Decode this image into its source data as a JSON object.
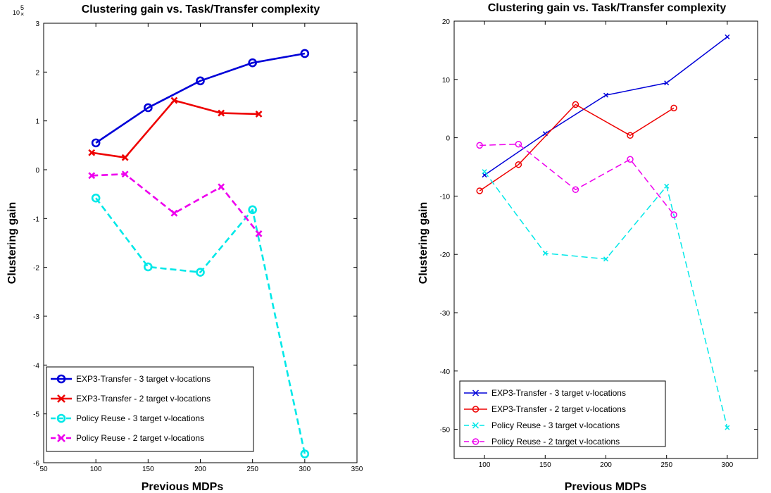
{
  "chart_data": [
    {
      "type": "line",
      "title": "Clustering gain vs. Task/Transfer complexity",
      "xlabel": "Previous MDPs",
      "ylabel": "Clustering gain",
      "exponent_label": "10",
      "exponent_power": "5",
      "xlim": [
        50,
        350
      ],
      "ylim": [
        -6,
        3
      ],
      "xticks": [
        "50",
        "100",
        "150",
        "200",
        "250",
        "300",
        "350"
      ],
      "yticks": [
        "-6",
        "-5",
        "-4",
        "-3",
        "-2",
        "-1",
        "0",
        "1",
        "2",
        "3"
      ],
      "legend_position": "lower-left",
      "series": [
        {
          "name": "EXP3-Transfer - 3 target v-locations",
          "color": "#0000d8",
          "dash": "solid",
          "marker": "o",
          "x": [
            100,
            150,
            200,
            250,
            300
          ],
          "y": [
            0.55,
            1.27,
            1.82,
            2.19,
            2.38
          ]
        },
        {
          "name": "EXP3-Transfer - 2 target v-locations",
          "color": "#ee0000",
          "dash": "solid",
          "marker": "x",
          "x": [
            96,
            128,
            175,
            220,
            256
          ],
          "y": [
            0.35,
            0.25,
            1.42,
            1.16,
            1.14
          ]
        },
        {
          "name": "Policy Reuse - 3 target v-locations",
          "color": "#00e8e8",
          "dash": "dashed",
          "marker": "o",
          "x": [
            100,
            150,
            200,
            250,
            300
          ],
          "y": [
            -0.58,
            -1.99,
            -2.1,
            -0.82,
            -5.82
          ]
        },
        {
          "name": "Policy Reuse - 2 target v-locations",
          "color": "#ee00ee",
          "dash": "dashed",
          "marker": "x",
          "x": [
            96,
            128,
            175,
            220,
            256
          ],
          "y": [
            -0.12,
            -0.09,
            -0.89,
            -0.35,
            -1.31
          ]
        }
      ]
    },
    {
      "type": "line",
      "title": "Clustering gain vs. Task/Transfer complexity",
      "xlabel": "Previous MDPs",
      "ylabel": "Clustering gain",
      "xlim": [
        75,
        325
      ],
      "ylim": [
        -55,
        20
      ],
      "xticks": [
        "100",
        "150",
        "200",
        "250",
        "300"
      ],
      "yticks": [
        "-50",
        "-40",
        "-30",
        "-20",
        "-10",
        "0",
        "10",
        "20"
      ],
      "legend_position": "lower-left",
      "series": [
        {
          "name": "EXP3-Transfer - 3 target v-locations",
          "color": "#0000d8",
          "dash": "solid",
          "marker": "x",
          "x": [
            100,
            150,
            200,
            250,
            300
          ],
          "y": [
            -6.4,
            0.7,
            7.3,
            9.4,
            17.3
          ]
        },
        {
          "name": "EXP3-Transfer - 2 target v-locations",
          "color": "#ee0000",
          "dash": "solid",
          "marker": "o",
          "x": [
            96,
            128,
            175,
            220,
            256
          ],
          "y": [
            -9.1,
            -4.6,
            5.7,
            0.4,
            5.1
          ]
        },
        {
          "name": "Policy Reuse - 3 target v-locations",
          "color": "#00e8e8",
          "dash": "dashed",
          "marker": "x",
          "x": [
            100,
            150,
            200,
            250,
            300
          ],
          "y": [
            -5.8,
            -19.8,
            -20.8,
            -8.3,
            -49.7
          ]
        },
        {
          "name": "Policy Reuse - 2 target v-locations",
          "color": "#ee00ee",
          "dash": "dashed",
          "marker": "o",
          "x": [
            96,
            128,
            175,
            220,
            256
          ],
          "y": [
            -1.3,
            -1.1,
            -8.9,
            -3.7,
            -13.2
          ]
        }
      ]
    }
  ]
}
